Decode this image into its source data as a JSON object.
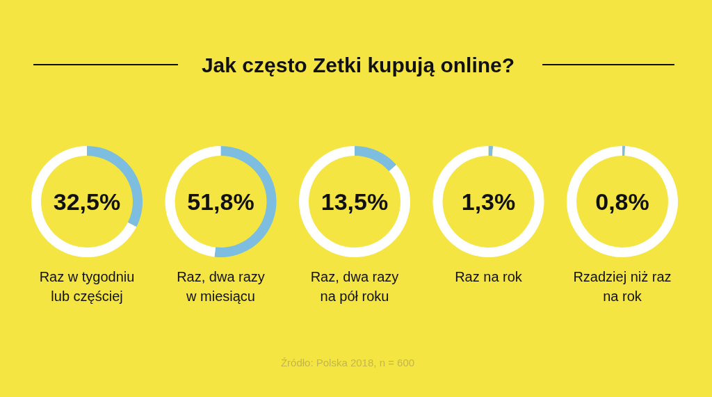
{
  "chart_data": [
    {
      "type": "other",
      "title": "Jak często Zetki kupują online?",
      "annotations": [
        "Źródło: Polska 2018, n = 600"
      ]
    },
    {
      "type": "donut",
      "title": "Raz w tygodniu\nlub częściej",
      "categories": [
        null,
        null
      ],
      "values": [
        32.5,
        67.5
      ],
      "colors": [
        "#7dbde0",
        "#ffffff"
      ],
      "annotations": [
        "32,5%"
      ]
    },
    {
      "type": "donut",
      "title": "Raz, dwa razy\nw miesiącu",
      "categories": [
        null,
        null
      ],
      "values": [
        51.8,
        48.2
      ],
      "colors": [
        "#7dbde0",
        "#ffffff"
      ],
      "annotations": [
        "51,8%"
      ]
    },
    {
      "type": "donut",
      "title": "Raz, dwa razy\nna pół roku",
      "categories": [
        null,
        null
      ],
      "values": [
        13.5,
        86.5
      ],
      "colors": [
        "#7dbde0",
        "#ffffff"
      ],
      "annotations": [
        "13,5%"
      ]
    },
    {
      "type": "donut",
      "title": "Raz na rok",
      "categories": [
        null,
        null
      ],
      "values": [
        1.3,
        98.7
      ],
      "colors": [
        "#7dbde0",
        "#ffffff"
      ],
      "annotations": [
        "1,3%"
      ]
    },
    {
      "type": "donut",
      "title": "Rzadziej niż raz\nna rok",
      "categories": [
        null,
        null
      ],
      "values": [
        0.8,
        99.2
      ],
      "colors": [
        "#7dbde0",
        "#ffffff"
      ],
      "annotations": [
        "0,8%"
      ]
    }
  ]
}
